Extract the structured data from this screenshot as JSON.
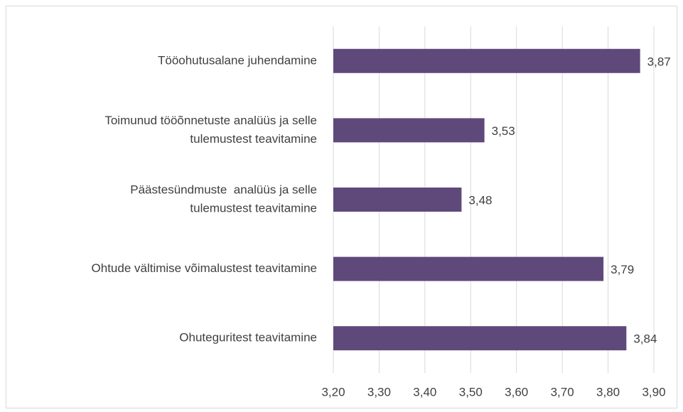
{
  "chart_data": {
    "type": "bar",
    "orientation": "horizontal",
    "categories": [
      [
        "Tööohutusalane juhendamine"
      ],
      [
        "Toimunud tööõnnetuste analüüs ja selle",
        "tulemustest teavitamine"
      ],
      [
        "Päästesündmuste  analüüs ja selle",
        "tulemustest teavitamine"
      ],
      [
        "Ohtude vältimise võimalustest teavitamine"
      ],
      [
        "Ohuteguritest teavitamine"
      ]
    ],
    "values": [
      3.87,
      3.53,
      3.48,
      3.79,
      3.84
    ],
    "value_labels": [
      "3,87",
      "3,53",
      "3,48",
      "3,79",
      "3,84"
    ],
    "color": "#5f497a",
    "xlim": [
      3.2,
      3.9
    ],
    "xticks": [
      {
        "value": 3.2,
        "label": "3,20"
      },
      {
        "value": 3.3,
        "label": "3,30"
      },
      {
        "value": 3.4,
        "label": "3,40"
      },
      {
        "value": 3.5,
        "label": "3,50"
      },
      {
        "value": 3.6,
        "label": "3,60"
      },
      {
        "value": 3.7,
        "label": "3,70"
      },
      {
        "value": 3.8,
        "label": "3,80"
      },
      {
        "value": 3.9,
        "label": "3,90"
      }
    ],
    "grid": true
  }
}
